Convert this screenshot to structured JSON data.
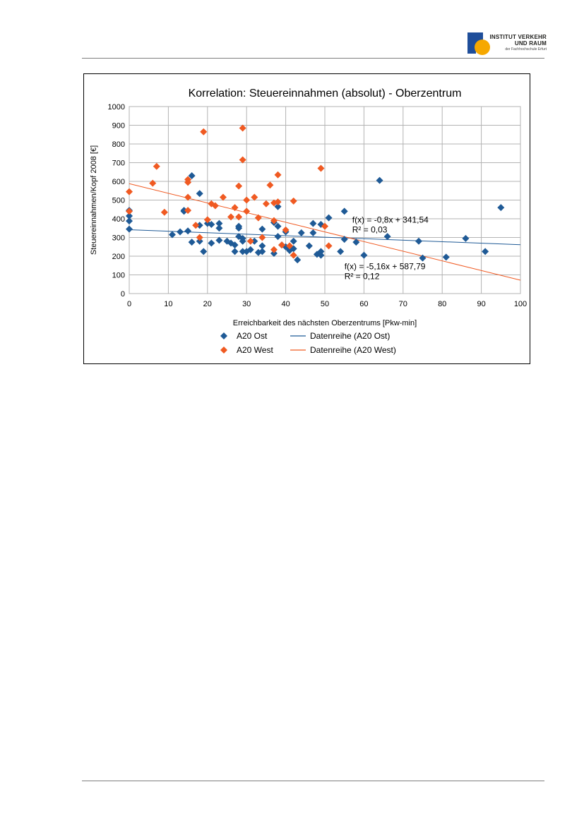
{
  "logo": {
    "line1": "INSTITUT VERKEHR",
    "line2": "UND RAUM",
    "line3": "der Fachhochschule Erfurt"
  },
  "chart_data": {
    "type": "scatter",
    "title": "Korrelation: Steuereinnahmen (absolut) - Oberzentrum",
    "xlabel": "Erreichbarkeit des nächsten Oberzentrums [Pkw-min]",
    "ylabel": "Steuereinnahmen/Kopf 2008 [€]",
    "xlim": [
      0,
      100
    ],
    "ylim": [
      0,
      1000
    ],
    "xticks": [
      "0",
      "10",
      "20",
      "30",
      "40",
      "50",
      "60",
      "70",
      "80",
      "90",
      "100"
    ],
    "yticks": [
      "0",
      "100",
      "200",
      "300",
      "400",
      "500",
      "600",
      "700",
      "800",
      "900",
      "1000"
    ],
    "grid": true,
    "legend_position": "bottom",
    "series": [
      {
        "name": "A20 Ost",
        "color": "#1f5a96",
        "marker": "diamond",
        "points": [
          [
            0,
            445
          ],
          [
            0,
            415
          ],
          [
            0,
            388
          ],
          [
            0,
            345
          ],
          [
            11,
            315
          ],
          [
            13,
            330
          ],
          [
            14,
            440
          ],
          [
            14,
            445
          ],
          [
            15,
            335
          ],
          [
            16,
            630
          ],
          [
            16,
            275
          ],
          [
            18,
            280
          ],
          [
            18,
            365
          ],
          [
            18,
            535
          ],
          [
            19,
            225
          ],
          [
            20,
            375
          ],
          [
            21,
            270
          ],
          [
            21,
            370
          ],
          [
            23,
            285
          ],
          [
            23,
            350
          ],
          [
            23,
            375
          ],
          [
            25,
            280
          ],
          [
            26,
            270
          ],
          [
            27,
            225
          ],
          [
            27,
            260
          ],
          [
            28,
            350
          ],
          [
            28,
            360
          ],
          [
            28,
            305
          ],
          [
            29,
            225
          ],
          [
            29,
            280
          ],
          [
            29,
            295
          ],
          [
            30,
            225
          ],
          [
            31,
            235
          ],
          [
            32,
            280
          ],
          [
            33,
            220
          ],
          [
            34,
            345
          ],
          [
            34,
            255
          ],
          [
            34,
            225
          ],
          [
            37,
            380
          ],
          [
            37,
            215
          ],
          [
            38,
            465
          ],
          [
            38,
            360
          ],
          [
            38,
            305
          ],
          [
            39,
            260
          ],
          [
            40,
            330
          ],
          [
            40,
            250
          ],
          [
            41,
            235
          ],
          [
            41,
            230
          ],
          [
            42,
            240
          ],
          [
            42,
            280
          ],
          [
            43,
            180
          ],
          [
            44,
            325
          ],
          [
            46,
            255
          ],
          [
            47,
            375
          ],
          [
            47,
            325
          ],
          [
            48,
            210
          ],
          [
            49,
            370
          ],
          [
            49,
            225
          ],
          [
            49,
            205
          ],
          [
            51,
            405
          ],
          [
            54,
            225
          ],
          [
            55,
            440
          ],
          [
            55,
            290
          ],
          [
            58,
            275
          ],
          [
            60,
            205
          ],
          [
            64,
            605
          ],
          [
            66,
            305
          ],
          [
            74,
            280
          ],
          [
            75,
            190
          ],
          [
            81,
            195
          ],
          [
            86,
            295
          ],
          [
            91,
            225
          ],
          [
            95,
            460
          ]
        ]
      },
      {
        "name": "A20 West",
        "color": "#f05a22",
        "marker": "diamond",
        "points": [
          [
            0,
            545
          ],
          [
            0,
            440
          ],
          [
            6,
            590
          ],
          [
            7,
            680
          ],
          [
            9,
            435
          ],
          [
            15,
            595
          ],
          [
            15,
            610
          ],
          [
            15,
            515
          ],
          [
            15,
            445
          ],
          [
            17,
            365
          ],
          [
            18,
            300
          ],
          [
            19,
            865
          ],
          [
            20,
            395
          ],
          [
            21,
            480
          ],
          [
            22,
            470
          ],
          [
            24,
            515
          ],
          [
            26,
            410
          ],
          [
            27,
            460
          ],
          [
            28,
            410
          ],
          [
            28,
            575
          ],
          [
            29,
            885
          ],
          [
            29,
            715
          ],
          [
            30,
            500
          ],
          [
            30,
            440
          ],
          [
            31,
            280
          ],
          [
            32,
            515
          ],
          [
            33,
            405
          ],
          [
            34,
            300
          ],
          [
            35,
            480
          ],
          [
            36,
            580
          ],
          [
            37,
            485
          ],
          [
            37,
            390
          ],
          [
            37,
            235
          ],
          [
            38,
            490
          ],
          [
            38,
            635
          ],
          [
            39,
            260
          ],
          [
            40,
            340
          ],
          [
            41,
            255
          ],
          [
            42,
            205
          ],
          [
            42,
            495
          ],
          [
            49,
            670
          ],
          [
            50,
            360
          ],
          [
            51,
            255
          ]
        ]
      }
    ],
    "trendlines": [
      {
        "name": "Datenreihe (A20 Ost)",
        "color": "#1f5a96",
        "slope": -0.8,
        "intercept": 341.54,
        "equation": "f(x) = -0,8x + 341,54",
        "r2": "R² = 0,03"
      },
      {
        "name": "Datenreihe (A20 West)",
        "color": "#f05a22",
        "slope": -5.16,
        "intercept": 587.79,
        "equation": "f(x) = -5,16x + 587,79",
        "r2": "R² = 0,12"
      }
    ]
  }
}
